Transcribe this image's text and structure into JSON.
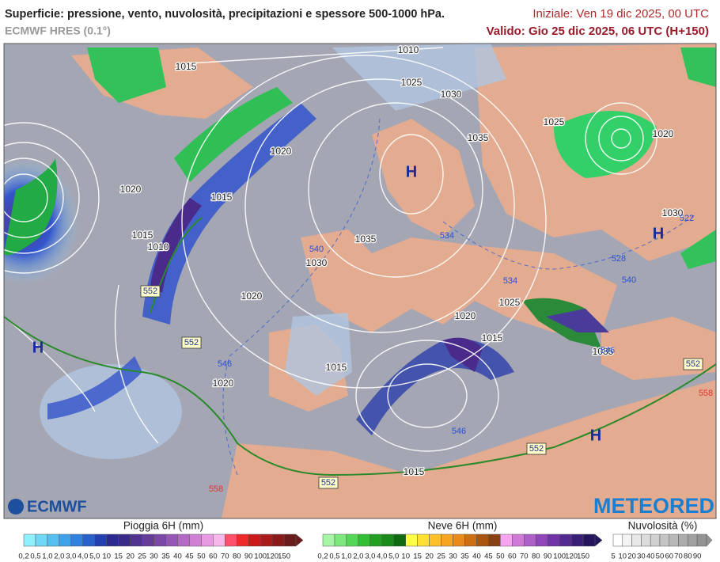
{
  "header": {
    "title": "Superficie: pressione, vento, nuvolosità, precipitazioni e spessore 500-1000 hPa.",
    "model": "ECMWF HRES (0.1°)",
    "initial": "Iniziale: Ven 19 dic 2025, 00 UTC",
    "valid": "Valido: Gio 25 dic 2025, 06 UTC (H+150)"
  },
  "map": {
    "pressure_labels": [
      "1015",
      "1010",
      "1025",
      "1030",
      "1035",
      "1025",
      "1020",
      "1020",
      "1015",
      "1020",
      "1015",
      "1010",
      "1035",
      "1030",
      "1030",
      "1025",
      "1020",
      "1020",
      "1015",
      "1015",
      "1020",
      "1035",
      "1015"
    ],
    "thickness_labels": [
      "552",
      "552",
      "552",
      "552",
      "552",
      "540",
      "534",
      "534",
      "528",
      "522",
      "540",
      "546",
      "546",
      "546",
      "558",
      "558"
    ],
    "highs": [
      "H",
      "H",
      "H",
      "H"
    ],
    "logo_left": "ECMWF",
    "logo_right": "METEORED"
  },
  "legends": {
    "rain": {
      "title": "Pioggia 6H (mm)",
      "ticks": [
        "0,2",
        "0,5",
        "1,0",
        "2,0",
        "3,0",
        "4,0",
        "5,0",
        "10",
        "15",
        "20",
        "25",
        "30",
        "35",
        "40",
        "45",
        "50",
        "60",
        "70",
        "80",
        "90",
        "100",
        "120",
        "150"
      ]
    },
    "snow": {
      "title": "Neve 6H (mm)",
      "ticks": [
        "0,2",
        "0,5",
        "1,0",
        "2,0",
        "3,0",
        "4,0",
        "5,0",
        "10",
        "15",
        "20",
        "25",
        "30",
        "35",
        "40",
        "45",
        "50",
        "60",
        "70",
        "80",
        "90",
        "100",
        "120",
        "150"
      ]
    },
    "cloud": {
      "title": "Nuvolosità (%)",
      "ticks": [
        "5",
        "10",
        "20",
        "30",
        "40",
        "50",
        "60",
        "70",
        "80",
        "90"
      ]
    }
  }
}
